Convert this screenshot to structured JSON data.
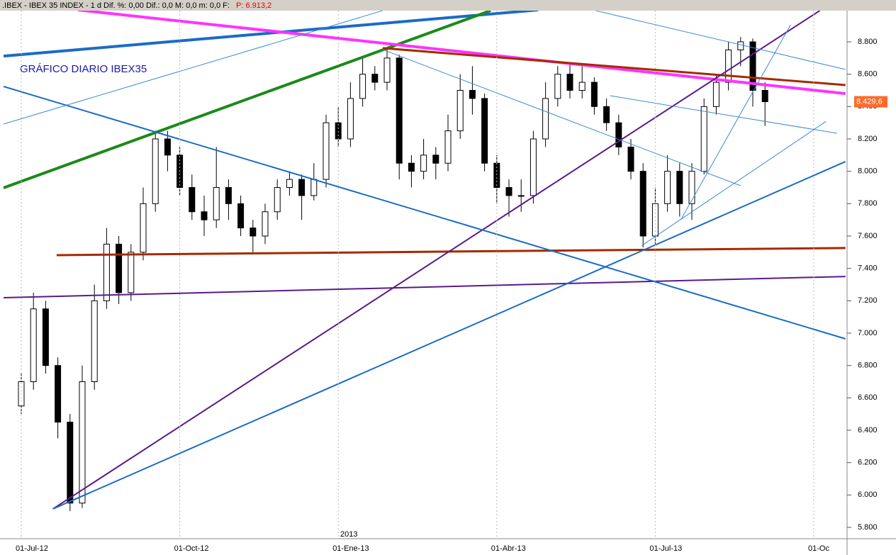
{
  "chart_data": {
    "type": "candlestick",
    "header": ".IBEX - IBEX 35 INDEX - 1 d Dif. %: 0,00 Dif.: 0,0 M: 0,0 m: 0,0 F:",
    "header_price": "P: 6.913,2",
    "title": "GRÁFICO DIARIO IBEX35",
    "year_label": "2013",
    "categories": [
      "01-Jul-12",
      null,
      null,
      null,
      null,
      null,
      null,
      null,
      null,
      null,
      null,
      null,
      null,
      "01-Oct-12",
      null,
      null,
      null,
      null,
      null,
      null,
      null,
      null,
      null,
      null,
      null,
      null,
      "01-Ene-13",
      null,
      null,
      null,
      null,
      null,
      null,
      null,
      null,
      null,
      null,
      null,
      null,
      "01-Abr-13",
      null,
      null,
      null,
      null,
      null,
      null,
      null,
      null,
      null,
      null,
      null,
      null,
      "01-Jul-13",
      null,
      null,
      null,
      null,
      null,
      null,
      null,
      null,
      null,
      null,
      null,
      null,
      "01-Oc"
    ],
    "open": [
      6550,
      6700,
      7150,
      6800,
      6450,
      5950,
      6700,
      7200,
      7550,
      7250,
      7500,
      7800,
      8200,
      8100,
      7900,
      7750,
      7700,
      7900,
      7800,
      7650,
      7600,
      7750,
      7900,
      7950,
      7850,
      7950,
      8300,
      8200,
      8450,
      8600,
      8550,
      8700,
      8050,
      8000,
      8100,
      8050,
      8250,
      8500,
      8450,
      8050,
      7900,
      7850,
      7850,
      8200,
      8450,
      8600,
      8500,
      8550,
      8400,
      8300,
      8150,
      8000,
      7600,
      7800,
      8000,
      7800,
      8000,
      8400,
      8550,
      8750,
      8800,
      8500,
      null,
      null,
      null,
      null
    ],
    "high": [
      6750,
      7250,
      7200,
      6850,
      6500,
      6800,
      7300,
      7650,
      7600,
      7550,
      7900,
      8250,
      8250,
      8150,
      7980,
      7850,
      8150,
      7950,
      7850,
      7700,
      7800,
      7950,
      8000,
      7980,
      8050,
      8350,
      8400,
      8550,
      8700,
      8650,
      8760,
      8720,
      8100,
      8200,
      8150,
      8350,
      8600,
      8650,
      8480,
      8100,
      7950,
      7950,
      8250,
      8550,
      8650,
      8660,
      8650,
      8580,
      8450,
      8350,
      8200,
      8050,
      7900,
      8100,
      8050,
      8050,
      8450,
      8600,
      8800,
      8830,
      8820,
      8550,
      null,
      null,
      null,
      null
    ],
    "low": [
      6500,
      6650,
      6750,
      6350,
      5900,
      5920,
      6650,
      7150,
      7180,
      7200,
      7450,
      7750,
      8000,
      7850,
      7700,
      7600,
      7650,
      7700,
      7600,
      7500,
      7550,
      7700,
      7850,
      7700,
      7820,
      7900,
      8150,
      8150,
      8400,
      8500,
      8500,
      7950,
      7900,
      7950,
      7950,
      8000,
      8200,
      8350,
      8000,
      7800,
      7720,
      7750,
      7800,
      8150,
      8400,
      8450,
      8450,
      8350,
      8250,
      8100,
      7950,
      7530,
      7550,
      7750,
      7720,
      7700,
      7980,
      8350,
      8500,
      8650,
      8400,
      8280,
      null,
      null,
      null,
      null
    ],
    "close": [
      6700,
      7150,
      6800,
      6450,
      5950,
      6700,
      7200,
      7550,
      7250,
      7500,
      7800,
      8200,
      8100,
      7900,
      7750,
      7700,
      7900,
      7800,
      7650,
      7600,
      7750,
      7900,
      7950,
      7850,
      7950,
      8300,
      8200,
      8450,
      8600,
      8550,
      8700,
      8050,
      8000,
      8100,
      8050,
      8250,
      8500,
      8450,
      8050,
      7900,
      7850,
      7850,
      8200,
      8450,
      8600,
      8500,
      8550,
      8400,
      8300,
      8150,
      8000,
      7600,
      7800,
      8000,
      7800,
      8000,
      8400,
      8550,
      8750,
      8800,
      8500,
      8430,
      null,
      null,
      null,
      null
    ],
    "up_color": "#ffffff",
    "down_color": "#000000",
    "last_price": {
      "value": 8429.6,
      "label": "8.429,6"
    },
    "ylim": [
      5700,
      9000
    ],
    "yticks": [
      {
        "value": 5800,
        "label": "5.800"
      },
      {
        "value": 6000,
        "label": "6.000"
      },
      {
        "value": 6200,
        "label": "6.200"
      },
      {
        "value": 6400,
        "label": "6.400"
      },
      {
        "value": 6600,
        "label": "6.600"
      },
      {
        "value": 6800,
        "label": "6.800"
      },
      {
        "value": 7000,
        "label": "7.000"
      },
      {
        "value": 7200,
        "label": "7.200"
      },
      {
        "value": 7400,
        "label": "7.400"
      },
      {
        "value": 7600,
        "label": "7.600"
      },
      {
        "value": 7800,
        "label": "7.800"
      },
      {
        "value": 8000,
        "label": "8.000"
      },
      {
        "value": 8200,
        "label": "8.200"
      },
      {
        "value": 8400,
        "label": "8.400"
      },
      {
        "value": 8600,
        "label": "8.600"
      },
      {
        "value": 8800,
        "label": "8.800"
      }
    ],
    "trendlines": [
      {
        "start": [
          -1.45,
          8712
        ],
        "end": [
          42.4,
          8997
        ],
        "color": "#1a6bc7",
        "width": 4
      },
      {
        "start": [
          -1.45,
          7898
        ],
        "end": [
          38.5,
          8993
        ],
        "color": "#1a8a1a",
        "width": 4
      },
      {
        "start": [
          4.65,
          8997
        ],
        "end": [
          67.6,
          8480
        ],
        "color": "#ff33ff",
        "width": 4
      },
      {
        "start": [
          29.65,
          8761
        ],
        "end": [
          67.6,
          8533
        ],
        "color": "#a52a00",
        "width": 3
      },
      {
        "start": [
          2.9,
          7482
        ],
        "end": [
          67.6,
          7526
        ],
        "color": "#a52a00",
        "width": 3
      },
      {
        "start": [
          -1.45,
          7219
        ],
        "end": [
          67.6,
          7350
        ],
        "color": "#5a1a8a",
        "width": 2
      },
      {
        "start": [
          2.6,
          5914
        ],
        "end": [
          65.5,
          8993
        ],
        "color": "#5a1a8a",
        "width": 2
      },
      {
        "start": [
          -1.45,
          8524
        ],
        "end": [
          67.6,
          6965
        ],
        "color": "#1a6bc7",
        "width": 2
      },
      {
        "start": [
          2.6,
          5914
        ],
        "end": [
          67.6,
          8060
        ],
        "color": "#1a6bc7",
        "width": 2
      },
      {
        "start": [
          -1.45,
          8292
        ],
        "end": [
          29.65,
          8993
        ],
        "color": "#3a8ad8",
        "width": 1
      },
      {
        "start": [
          47.1,
          8993
        ],
        "end": [
          67.6,
          8629
        ],
        "color": "#3a8ad8",
        "width": 1
      },
      {
        "start": [
          29.65,
          8752
        ],
        "end": [
          59,
          7911
        ],
        "color": "#3a8ad8",
        "width": 1
      },
      {
        "start": [
          48.3,
          8467
        ],
        "end": [
          66.9,
          8235
        ],
        "color": "#3a8ad8",
        "width": 1
      },
      {
        "start": [
          54.1,
          7701
        ],
        "end": [
          63.1,
          8905
        ],
        "color": "#3a8ad8",
        "width": 1
      },
      {
        "start": [
          50.9,
          7541
        ],
        "end": [
          66,
          8308
        ],
        "color": "#3a8ad8",
        "width": 1
      }
    ]
  }
}
